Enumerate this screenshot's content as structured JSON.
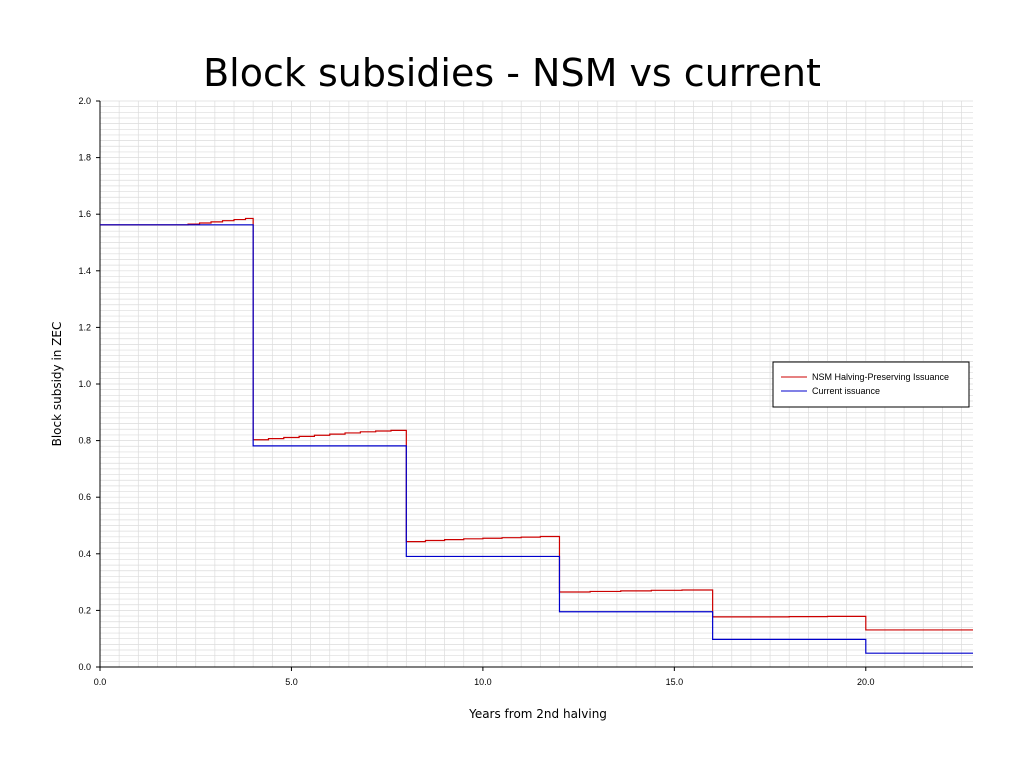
{
  "chart_data": {
    "type": "line",
    "title": "Block subsidies - NSM vs current",
    "xlabel": "Years from 2nd halving",
    "ylabel": "Block subsidy in ZEC",
    "xlim": [
      0,
      22.8
    ],
    "ylim": [
      0,
      2.0
    ],
    "x_ticks": [
      0,
      5,
      10,
      15,
      20
    ],
    "x_tick_labels": [
      "0.0",
      "5.0",
      "10.0",
      "15.0",
      "20.0"
    ],
    "y_ticks": [
      0,
      0.2,
      0.4,
      0.6,
      0.8,
      1.0,
      1.2,
      1.4,
      1.6,
      1.8,
      2.0
    ],
    "y_tick_labels": [
      "0.0",
      "0.2",
      "0.4",
      "0.6",
      "0.8",
      "1.0",
      "1.2",
      "1.4",
      "1.6",
      "1.8",
      "2.0"
    ],
    "grid": true,
    "legend_position": "right",
    "series": [
      {
        "name": "NSM Halving-Preserving Issuance",
        "color": "#cc0000",
        "step": true,
        "x": [
          0,
          2.3,
          2.6,
          2.9,
          3.2,
          3.5,
          3.8,
          4.0,
          4.4,
          4.8,
          5.2,
          5.6,
          6.0,
          6.4,
          6.8,
          7.2,
          7.6,
          8.0,
          8.5,
          9.0,
          9.5,
          10.0,
          10.5,
          11.0,
          11.5,
          12.0,
          12.8,
          13.6,
          14.4,
          15.2,
          16.0,
          17.0,
          18.0,
          19.0,
          20.0,
          21.0,
          22.8
        ],
        "y": [
          1.5625,
          1.565,
          1.569,
          1.573,
          1.577,
          1.581,
          1.585,
          0.803,
          0.807,
          0.811,
          0.815,
          0.819,
          0.823,
          0.827,
          0.831,
          0.834,
          0.836,
          0.443,
          0.447,
          0.45,
          0.453,
          0.455,
          0.457,
          0.459,
          0.461,
          0.265,
          0.267,
          0.269,
          0.271,
          0.272,
          0.177,
          0.177,
          0.178,
          0.179,
          0.131,
          0.131,
          0.131
        ]
      },
      {
        "name": "Current issuance",
        "color": "#0000cc",
        "step": true,
        "x": [
          0,
          4,
          8,
          12,
          16,
          20,
          22.8
        ],
        "y": [
          1.5625,
          0.78125,
          0.390625,
          0.1953125,
          0.09765625,
          0.048828125,
          0.048828125
        ]
      }
    ]
  }
}
